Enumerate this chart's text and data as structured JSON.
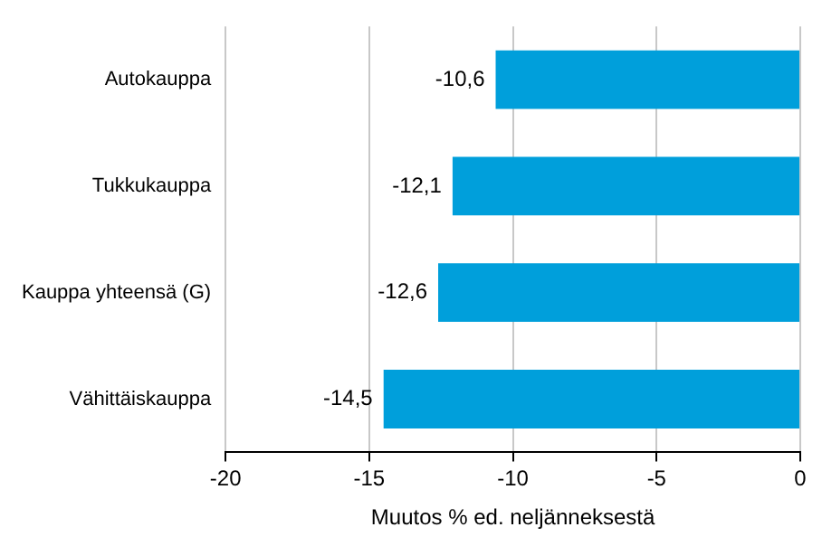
{
  "chart_data": {
    "type": "bar",
    "orientation": "horizontal",
    "xlabel": "Muutos % ed. neljänneksestä",
    "categories": [
      "Autokauppa",
      "Tukkukauppa",
      "Kauppa yhteensä (G)",
      "Vähittäiskauppa"
    ],
    "values": [
      -10.6,
      -12.1,
      -12.6,
      -14.5
    ],
    "value_labels": [
      "-10,6",
      "-12,1",
      "-12,6",
      "-14,5"
    ],
    "color": "#009fdb",
    "xlim": [
      -20,
      0
    ],
    "xticks": [
      -20,
      -15,
      -10,
      -5,
      0
    ],
    "grid": "x",
    "legend": false
  }
}
